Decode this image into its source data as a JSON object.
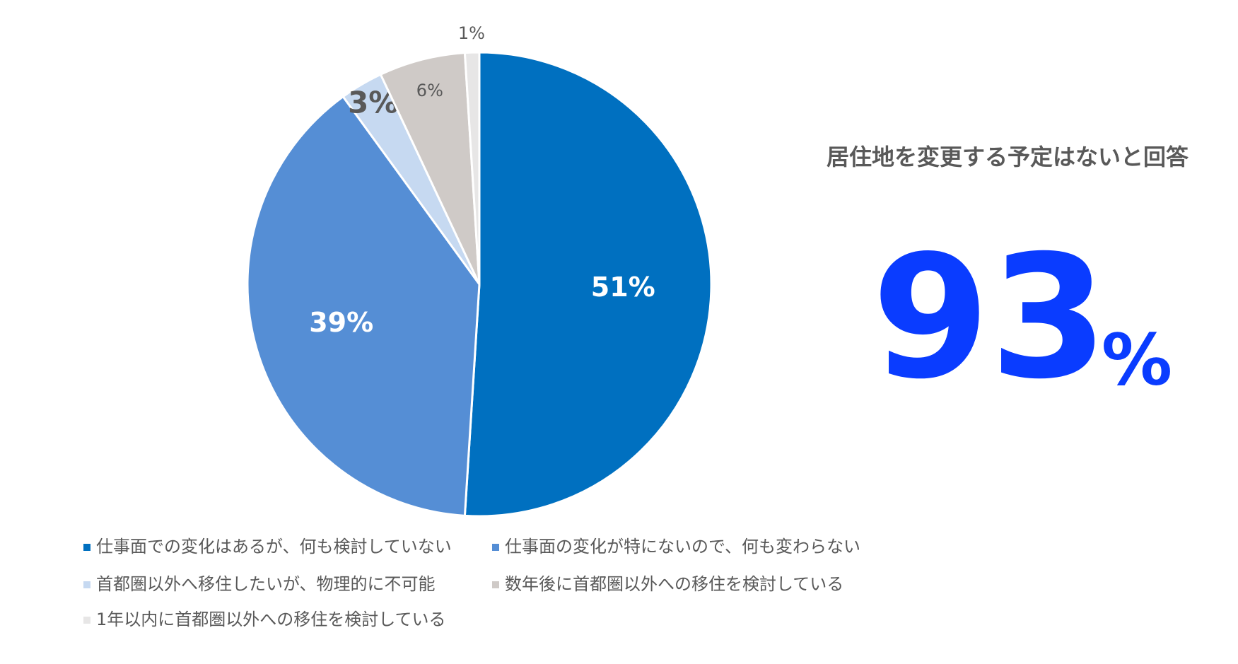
{
  "chart_data": {
    "type": "pie",
    "categories": [
      "仕事面での変化はあるが、何も検討していない",
      "仕事面の変化が特にないので、何も変わらない",
      "首都圏以外へ移住したいが、物理的に不可能",
      "数年後に首都圏以外への移住を検討している",
      "1年以内に首都圏以外への移住を検討している"
    ],
    "values": [
      51,
      39,
      3,
      6,
      1
    ],
    "value_labels": [
      "51%",
      "39%",
      "3%",
      "6%",
      "1%"
    ],
    "colors": [
      "#0070C0",
      "#558ED5",
      "#C6D9F1",
      "#CFCAC7",
      "#E7E6E6"
    ]
  },
  "callout": {
    "title": "居住地を変更する予定はないと回答",
    "value": 93,
    "unit": "%"
  }
}
